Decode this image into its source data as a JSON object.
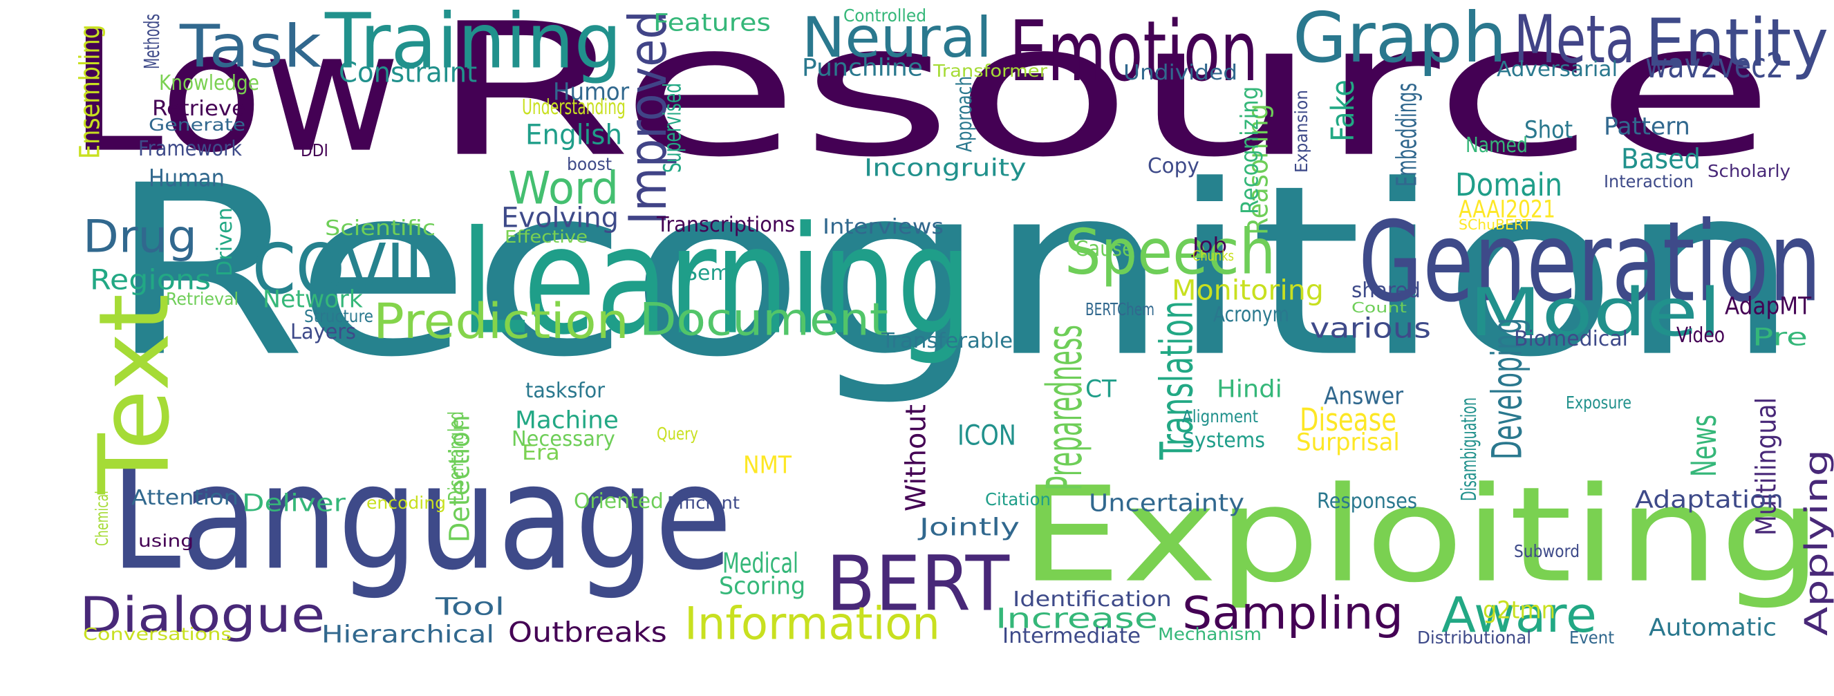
{
  "colors": {
    "background": "#ffffff",
    "palette": [
      "#440154",
      "#482878",
      "#3e4a89",
      "#31688e",
      "#26828e",
      "#1f9e89",
      "#35b779",
      "#6ece58",
      "#b5de2b",
      "#fde725"
    ]
  },
  "words": [
    {
      "text": "Low",
      "color": "#440154"
    },
    {
      "text": "Resource",
      "color": "#440154"
    },
    {
      "text": "Recognition",
      "color": "#26828e"
    },
    {
      "text": "Language",
      "color": "#3e4a89"
    },
    {
      "text": "Exploiting",
      "color": "#7ad151"
    },
    {
      "text": "Learning",
      "color": "#1f9e89"
    },
    {
      "text": "Text",
      "color": "#a5db36"
    },
    {
      "text": "Generation",
      "color": "#3e4a89"
    },
    {
      "text": "Emotion",
      "color": "#440154"
    },
    {
      "text": "Graph",
      "color": "#2a788e"
    },
    {
      "text": "Meta",
      "color": "#414487"
    },
    {
      "text": "Entity",
      "color": "#3e4a89"
    },
    {
      "text": "Training",
      "color": "#21918c"
    },
    {
      "text": "Task",
      "color": "#31688e"
    },
    {
      "text": "Neural",
      "color": "#2a788e"
    },
    {
      "text": "Speech",
      "color": "#6ece58"
    },
    {
      "text": "COVID",
      "color": "#26828e"
    },
    {
      "text": "Model",
      "color": "#21918c"
    },
    {
      "text": "BERT",
      "color": "#482878"
    },
    {
      "text": "Prediction",
      "color": "#84d44b"
    },
    {
      "text": "Document",
      "color": "#52c569"
    },
    {
      "text": "Improved",
      "color": "#414487"
    },
    {
      "text": "Word",
      "color": "#44bf70"
    },
    {
      "text": "Drug",
      "color": "#31688e"
    },
    {
      "text": "Dialogue",
      "color": "#482878"
    },
    {
      "text": "Sampling",
      "color": "#440154"
    },
    {
      "text": "Aware",
      "color": "#22a884"
    },
    {
      "text": "Information",
      "color": "#c8e020"
    },
    {
      "text": "Preparedness",
      "color": "#6ece58"
    },
    {
      "text": "Translation",
      "color": "#22a884"
    },
    {
      "text": "Developing",
      "color": "#2a788e"
    },
    {
      "text": "Applying",
      "color": "#482878"
    },
    {
      "text": "wav2vec2",
      "color": "#3e4a89"
    },
    {
      "text": "Constraint",
      "color": "#21918c"
    },
    {
      "text": "Punchline",
      "color": "#2a788e"
    },
    {
      "text": "Features",
      "color": "#35b779"
    },
    {
      "text": "Controlled",
      "color": "#35b779"
    },
    {
      "text": "Transformer",
      "color": "#a5db36"
    },
    {
      "text": "Undivided",
      "color": "#31688e"
    },
    {
      "text": "Adversarial",
      "color": "#2a788e"
    },
    {
      "text": "Humor",
      "color": "#31688e"
    },
    {
      "text": "English",
      "color": "#1f9e89"
    },
    {
      "text": "Fake",
      "color": "#22a884"
    },
    {
      "text": "Incongruity",
      "color": "#21918c"
    },
    {
      "text": "Reasoning",
      "color": "#6ece58"
    },
    {
      "text": "Recognizing",
      "color": "#35b779"
    },
    {
      "text": "Embeddings",
      "color": "#31688e"
    },
    {
      "text": "Expansion",
      "color": "#3e4a89"
    },
    {
      "text": "Shot",
      "color": "#2a788e"
    },
    {
      "text": "Pattern",
      "color": "#31688e"
    },
    {
      "text": "Named",
      "color": "#35b779"
    },
    {
      "text": "Based",
      "color": "#21918c"
    },
    {
      "text": "Domain",
      "color": "#1f9e89"
    },
    {
      "text": "Interaction",
      "color": "#3e4a89"
    },
    {
      "text": "Scholarly",
      "color": "#482878"
    },
    {
      "text": "AAAI2021",
      "color": "#fde725"
    },
    {
      "text": "SChuBERT",
      "color": "#fde725"
    },
    {
      "text": "Copy",
      "color": "#3e4a89"
    },
    {
      "text": "Ensembling",
      "color": "#c8e020"
    },
    {
      "text": "Methods",
      "color": "#3e4a89"
    },
    {
      "text": "Knowledge",
      "color": "#7ad151"
    },
    {
      "text": "Retrieve",
      "color": "#440154"
    },
    {
      "text": "Generate",
      "color": "#31688e"
    },
    {
      "text": "Framework",
      "color": "#3e4a89"
    },
    {
      "text": "DDI",
      "color": "#440154"
    },
    {
      "text": "Human",
      "color": "#31688e"
    },
    {
      "text": "Understanding",
      "color": "#c8e020"
    },
    {
      "text": "boost",
      "color": "#3e4a89"
    },
    {
      "text": "Supervised",
      "color": "#22a884"
    },
    {
      "text": "Approach",
      "color": "#2a788e"
    },
    {
      "text": "Evolving",
      "color": "#3e4a89"
    },
    {
      "text": "Transcriptions",
      "color": "#440154"
    },
    {
      "text": "Interviews",
      "color": "#31688e"
    },
    {
      "text": "Scientific",
      "color": "#6ece58"
    },
    {
      "text": "Effective",
      "color": "#7ad151"
    },
    {
      "text": "Driven",
      "color": "#22a884"
    },
    {
      "text": "Job",
      "color": "#440154"
    },
    {
      "text": "Chunks",
      "color": "#c8e020"
    },
    {
      "text": "Cause",
      "color": "#6ece58"
    },
    {
      "text": "Regions",
      "color": "#22a884"
    },
    {
      "text": "Network",
      "color": "#35b779"
    },
    {
      "text": "Semi",
      "color": "#1f9e89"
    },
    {
      "text": "Retrieval",
      "color": "#6ece58"
    },
    {
      "text": "Structure",
      "color": "#2a788e"
    },
    {
      "text": "Layers",
      "color": "#3e4a89"
    },
    {
      "text": "Monitoring",
      "color": "#c8e020"
    },
    {
      "text": "shared",
      "color": "#3e4a89"
    },
    {
      "text": "Count",
      "color": "#6ece58"
    },
    {
      "text": "Acronym",
      "color": "#2a788e"
    },
    {
      "text": "BERTChem",
      "color": "#31688e"
    },
    {
      "text": "Transferable",
      "color": "#2a788e"
    },
    {
      "text": "AdapMT",
      "color": "#440154"
    },
    {
      "text": "Biomedical",
      "color": "#3e4a89"
    },
    {
      "text": "Video",
      "color": "#440154"
    },
    {
      "text": "Pre",
      "color": "#35b779"
    },
    {
      "text": "various",
      "color": "#3e4a89"
    },
    {
      "text": "tasksfor",
      "color": "#2a788e"
    },
    {
      "text": "CT",
      "color": "#1f9e89"
    },
    {
      "text": "Hindi",
      "color": "#35b779"
    },
    {
      "text": "Answer",
      "color": "#31688e"
    },
    {
      "text": "Alignment",
      "color": "#21918c"
    },
    {
      "text": "Disease",
      "color": "#fde725"
    },
    {
      "text": "Surprisal",
      "color": "#fde725"
    },
    {
      "text": "Systems",
      "color": "#1f9e89"
    },
    {
      "text": "Disentangled",
      "color": "#6ece58"
    },
    {
      "text": "Machine",
      "color": "#22a884"
    },
    {
      "text": "Necessary",
      "color": "#6ece58"
    },
    {
      "text": "Era",
      "color": "#7ad151"
    },
    {
      "text": "Query",
      "color": "#c8e020"
    },
    {
      "text": "NMT",
      "color": "#fde725"
    },
    {
      "text": "ICON",
      "color": "#21918c"
    },
    {
      "text": "Without",
      "color": "#440154"
    },
    {
      "text": "Detection",
      "color": "#6ece58"
    },
    {
      "text": "Disambiguation",
      "color": "#21918c"
    },
    {
      "text": "Exposure",
      "color": "#21918c"
    },
    {
      "text": "Multilingual",
      "color": "#482878"
    },
    {
      "text": "News",
      "color": "#35b779"
    },
    {
      "text": "Attention",
      "color": "#31688e"
    },
    {
      "text": "Deliver",
      "color": "#35b779"
    },
    {
      "text": "encoding",
      "color": "#c8e020"
    },
    {
      "text": "Oriented",
      "color": "#6ece58"
    },
    {
      "text": "Efficient",
      "color": "#3e4a89"
    },
    {
      "text": "Citation",
      "color": "#1f9e89"
    },
    {
      "text": "Uncertainty",
      "color": "#31688e"
    },
    {
      "text": "Responses",
      "color": "#2a788e"
    },
    {
      "text": "Adaptation",
      "color": "#3e4a89"
    },
    {
      "text": "Chemical",
      "color": "#a5db36"
    },
    {
      "text": "using",
      "color": "#440154"
    },
    {
      "text": "Jointly",
      "color": "#31688e"
    },
    {
      "text": "Medical",
      "color": "#35b779"
    },
    {
      "text": "Scoring",
      "color": "#35b779"
    },
    {
      "text": "Subword",
      "color": "#3e4a89"
    },
    {
      "text": "Identification",
      "color": "#3e4a89"
    },
    {
      "text": "Increase",
      "color": "#35b779"
    },
    {
      "text": "g2tmn",
      "color": "#c8e020"
    },
    {
      "text": "Automatic",
      "color": "#2a788e"
    },
    {
      "text": "Tool",
      "color": "#31688e"
    },
    {
      "text": "Outbreaks",
      "color": "#440154"
    },
    {
      "text": "Hierarchical",
      "color": "#31688e"
    },
    {
      "text": "Conversations",
      "color": "#c8e020"
    },
    {
      "text": "Intermediate",
      "color": "#3e4a89"
    },
    {
      "text": "Mechanism",
      "color": "#35b779"
    },
    {
      "text": "Distributional",
      "color": "#3e4a89"
    },
    {
      "text": "Event",
      "color": "#31688e"
    }
  ]
}
